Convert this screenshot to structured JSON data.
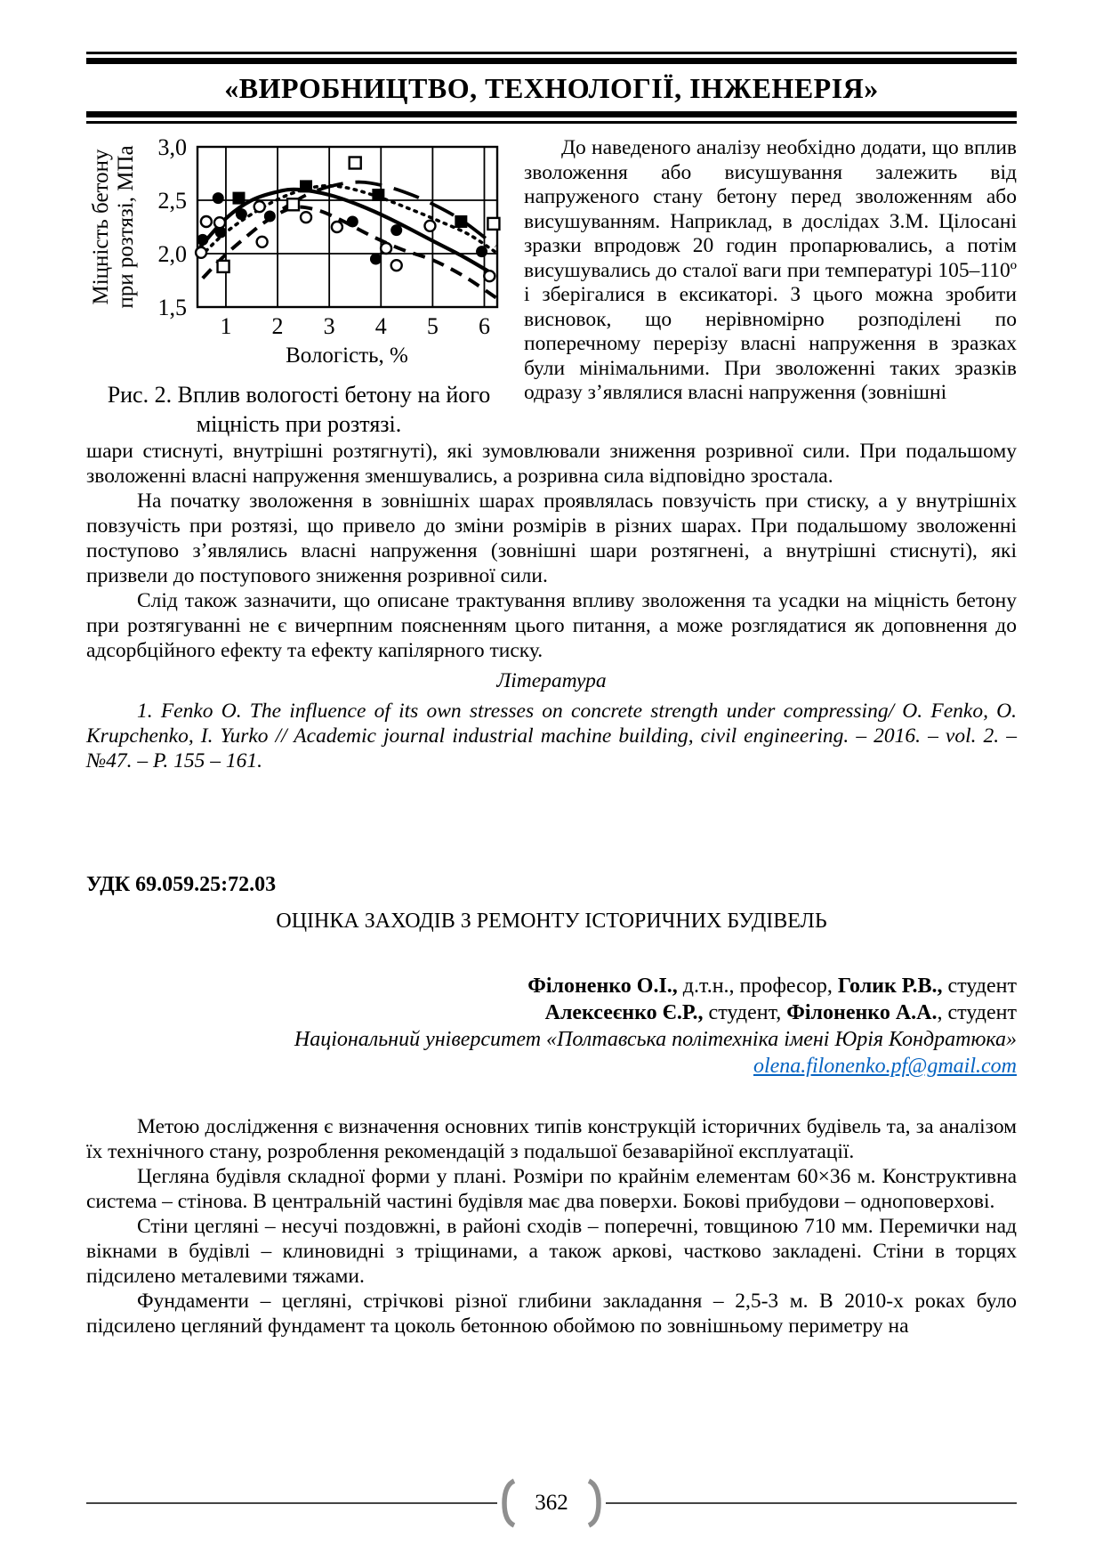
{
  "header": {
    "journal_title": "«ВИРОБНИЦТВО, ТЕХНОЛОГІЇ, ІНЖЕНЕРІЯ»"
  },
  "figure": {
    "caption": "Рис. 2. Вплив вологості бетону на його міцність при розтязі."
  },
  "chart_data": {
    "type": "scatter",
    "title": "",
    "xlabel": "Вологість, %",
    "ylabel_lines": [
      "Міцність бетону",
      "при розтязі, МПа"
    ],
    "xlim": [
      0.45,
      6.25
    ],
    "ylim": [
      1.5,
      3.0
    ],
    "xticks": [
      1,
      2,
      3,
      4,
      5,
      6
    ],
    "xtick_labels": [
      "1",
      "2",
      "3",
      "4",
      "5",
      "6"
    ],
    "yticks": [
      3.0,
      2.5,
      2.0,
      1.5
    ],
    "ytick_labels": [
      "3,0",
      "2,5",
      "2,0",
      "1,5"
    ],
    "grid": true,
    "point_series": [
      {
        "name": "filled-circles",
        "marker": "filled-circle",
        "points": [
          [
            0.55,
            2.13
          ],
          [
            0.85,
            2.52
          ],
          [
            0.9,
            2.2
          ],
          [
            1.3,
            2.37
          ],
          [
            1.85,
            2.35
          ],
          [
            3.45,
            2.3
          ],
          [
            3.9,
            1.95
          ],
          [
            4.3,
            2.22
          ],
          [
            5.95,
            2.02
          ]
        ]
      },
      {
        "name": "open-circles",
        "marker": "open-circle",
        "points": [
          [
            0.52,
            2.01
          ],
          [
            0.62,
            2.3
          ],
          [
            0.88,
            2.29
          ],
          [
            1.65,
            2.44
          ],
          [
            1.7,
            2.11
          ],
          [
            2.55,
            2.34
          ],
          [
            3.15,
            2.25
          ],
          [
            4.1,
            2.05
          ],
          [
            4.3,
            1.89
          ],
          [
            4.95,
            2.26
          ],
          [
            6.1,
            1.79
          ]
        ]
      },
      {
        "name": "filled-squares",
        "marker": "filled-square",
        "points": [
          [
            1.25,
            2.52
          ],
          [
            2.55,
            2.63
          ],
          [
            3.95,
            2.55
          ],
          [
            5.55,
            2.3
          ]
        ]
      },
      {
        "name": "open-squares",
        "marker": "open-square",
        "points": [
          [
            0.95,
            1.88
          ],
          [
            2.3,
            2.46
          ],
          [
            3.5,
            2.85
          ],
          [
            6.18,
            2.28
          ]
        ]
      }
    ],
    "curve_series": [
      {
        "name": "solid-curve",
        "style": "solid",
        "points": [
          [
            0.5,
            2.06
          ],
          [
            1.0,
            2.33
          ],
          [
            1.5,
            2.5
          ],
          [
            2.0,
            2.58
          ],
          [
            2.4,
            2.6
          ],
          [
            3.0,
            2.55
          ],
          [
            3.6,
            2.45
          ],
          [
            4.2,
            2.32
          ],
          [
            5.0,
            2.12
          ],
          [
            5.6,
            1.97
          ],
          [
            6.2,
            1.8
          ]
        ]
      },
      {
        "name": "dotted-curve",
        "style": "dotted",
        "points": [
          [
            0.5,
            1.97
          ],
          [
            1.0,
            2.2
          ],
          [
            1.6,
            2.4
          ],
          [
            2.2,
            2.55
          ],
          [
            2.8,
            2.63
          ],
          [
            3.3,
            2.62
          ],
          [
            3.9,
            2.54
          ],
          [
            4.5,
            2.43
          ],
          [
            5.1,
            2.31
          ],
          [
            5.7,
            2.18
          ],
          [
            6.2,
            2.02
          ]
        ]
      },
      {
        "name": "long-dash-curve",
        "style": "long-dash",
        "points": [
          [
            2.1,
            2.42
          ],
          [
            2.6,
            2.56
          ],
          [
            3.1,
            2.64
          ],
          [
            3.6,
            2.67
          ],
          [
            4.1,
            2.63
          ],
          [
            4.6,
            2.55
          ],
          [
            5.1,
            2.44
          ],
          [
            5.6,
            2.3
          ],
          [
            6.22,
            2.07
          ]
        ]
      },
      {
        "name": "short-dash-curve",
        "style": "short-dash",
        "points": [
          [
            0.55,
            1.77
          ],
          [
            0.95,
            1.97
          ],
          [
            1.35,
            2.14
          ],
          [
            1.8,
            2.31
          ],
          [
            2.3,
            2.43
          ],
          [
            2.75,
            2.41
          ],
          [
            3.2,
            2.32
          ],
          [
            3.8,
            2.17
          ],
          [
            4.4,
            2.04
          ],
          [
            5.0,
            1.94
          ],
          [
            5.6,
            1.79
          ],
          [
            6.25,
            1.58
          ]
        ]
      }
    ]
  },
  "article1": {
    "column_text": "До наведеного аналізу необхідно додати, що вплив зволоження або висушування залежить від напруженого стану бетону перед зволоженням або висушуванням. Наприклад, в дослідах З.М. Цілосані зразки впродовж 20 годин пропарювались, а потім висушувались до сталої ваги при температурі 105–110º і зберігалися в ексикаторі. З цього можна зробити висновок, що нерівномірно розподілені по поперечному перерізу власні напруження в зразках були мінімальними. При зволоженні таких зразків одразу з’являлися власні напруження (зовнішні",
    "paragraphs": [
      "шари стиснуті, внутрішні розтягнуті), які зумовлювали зниження розривної сили. При подальшому зволоженні власні напруження зменшувались, а розривна сила відповідно зростала.",
      "На початку зволоження в зовнішніх шарах проявлялась повзучість при стиску, а у внутрішніх повзучість при розтязі, що привело до зміни розмірів в різних шарах. При подальшому зволоженні поступово з’являлись власні напруження (зовнішні шари розтягнені, а внутрішні стиснуті), які призвели до поступового зниження розривної сили.",
      "Слід також зазначити, що описане трактування впливу зволоження та усадки на міцність бетону при розтягуванні не є вичерпним поясненням цього питання, а може розглядатися як доповнення до адсорбційного ефекту та ефекту капілярного тиску."
    ],
    "literature_heading": "Література",
    "reference": "1. Fenko O. The influence of its own stresses on concrete strength under compressing/ O. Fenko, O. Krupchenko, I. Yurko // Academic journal industrial machine building, civil engineering. – 2016. – vol. 2. – №47. – P. 155 – 161."
  },
  "article2": {
    "udk": "УДК 69.059.25:72.03",
    "title": "ОЦІНКА ЗАХОДІВ З РЕМОНТУ ІСТОРИЧНИХ БУДІВЕЛЬ",
    "authors_line1": [
      "Філоненко О.І.,",
      " д.т.н., професор, ",
      "Голик Р.В.,",
      " студент"
    ],
    "authors_line2": [
      "Алексеєнко Є.Р.,",
      " студент, ",
      "Філоненко А.А.",
      ", студент"
    ],
    "affiliation": "Національний університет «Полтавська політехніка імені Юрія Кондратюка»",
    "email": "olena.filonenko.pf@gmail.com",
    "paragraphs": [
      "Метою дослідження є визначення основних типів конструкцій історичних будівель та, за аналізом їх технічного стану, розроблення рекомендацій з подальшої безаварійної експлуатації.",
      "Цегляна будівля складної форми у плані. Розміри по крайнім елементам 60×36 м. Конструктивна система – стінова. В центральній частині будівля має два поверхи. Бокові прибудови – одноповерхові.",
      "Стіни цегляні – несучі поздовжні, в районі сходів – поперечні, товщиною 710 мм. Перемички над вікнами в будівлі – клиновидні з тріщинами, а також аркові, частково закладені. Стіни в торцях підсилено металевими тяжами.",
      "Фундаменти – цегляні, стрічкові різної глибини закладання – 2,5-3 м. В 2010-х роках було підсилено цегляний фундамент та цоколь бетонною обоймою по зовнішньому периметру на"
    ]
  },
  "footer": {
    "page_number": "362"
  },
  "colors": {
    "link_blue": "#0563C1",
    "bracket_gray": "#8f8f8f",
    "rule_black": "#000000",
    "footer_line_gray": "#444444"
  }
}
